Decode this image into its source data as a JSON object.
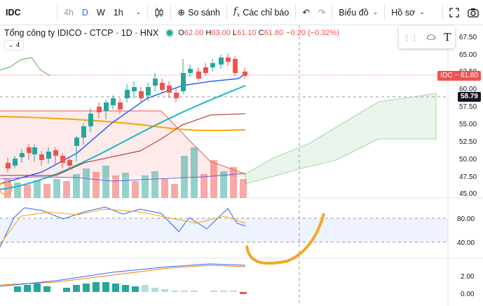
{
  "toolbar": {
    "symbol": "IDC",
    "intervals": [
      "4h",
      "D",
      "W",
      "1h"
    ],
    "compare_label": "So sánh",
    "indicators_label": "Các chỉ báo",
    "chart_type_label": "Biểu đồ",
    "profile_label": "Hồ sơ",
    "icons": [
      "candles-icon",
      "add-circle-icon",
      "fx-icon",
      "undo-icon",
      "redo-icon",
      "fullscreen-icon",
      "camera-icon"
    ]
  },
  "legend": {
    "company": "Tổng công ty IDICO - CTCP",
    "interval": "1D",
    "exchange": "HNX",
    "o_label": "O",
    "open": "62.00",
    "h_label": "H",
    "high": "63.00",
    "l_label": "L",
    "low": "61.10",
    "c_label": "C",
    "close": "61.80",
    "change": "−0.20 (−0.32%)",
    "indicator_count": "4"
  },
  "price_tags": {
    "symbol_tag": "IDC − 61.80",
    "crosshair_price": "58.79"
  },
  "price_axis": [
    "67.50",
    "65.00",
    "62.50",
    "60.00",
    "57.50",
    "55.00",
    "52.50",
    "50.00",
    "47.50",
    "45.00"
  ],
  "rsi_axis": [
    "80.00",
    "40.00"
  ],
  "macd_axis": [
    "2.00",
    "0.00"
  ],
  "colors": {
    "up": "#26a69a",
    "down": "#ef5350",
    "accent": "#2962ff",
    "annotation": "#f5a623"
  }
}
